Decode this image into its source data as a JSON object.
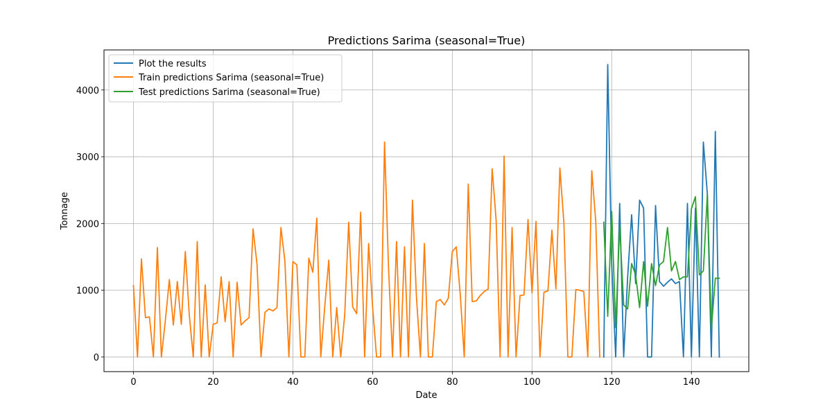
{
  "chart_data": {
    "type": "line",
    "title": "Predictions Sarima (seasonal=True)",
    "xlabel": "Date",
    "ylabel": "Tonnage",
    "xlim": [
      -7.4,
      154.4
    ],
    "ylim": [
      -219,
      4600
    ],
    "xticks": [
      0,
      20,
      40,
      60,
      80,
      100,
      120,
      140
    ],
    "yticks": [
      0,
      1000,
      2000,
      3000,
      4000
    ],
    "grid": true,
    "legend_position": "upper left",
    "series": [
      {
        "name": "Plot the results",
        "color": "#1f77b4",
        "x_start": 118,
        "values": [
          0,
          4380,
          1380,
          0,
          2300,
          0,
          1200,
          2130,
          1100,
          2350,
          2230,
          0,
          0,
          2270,
          1130,
          1060,
          1120,
          1170,
          1100,
          1130,
          0,
          2300,
          0,
          2230,
          0,
          3220,
          2440,
          0,
          3380,
          0
        ]
      },
      {
        "name": "Train predictions Sarima (seasonal=True)",
        "color": "#ff7f0e",
        "x_start": 0,
        "values": [
          1070,
          0,
          1470,
          590,
          600,
          0,
          1640,
          0,
          550,
          1160,
          480,
          1130,
          490,
          1580,
          630,
          0,
          1730,
          0,
          1080,
          0,
          490,
          510,
          1200,
          530,
          1130,
          0,
          1120,
          480,
          540,
          590,
          1920,
          1390,
          0,
          670,
          720,
          690,
          740,
          1940,
          1430,
          0,
          1430,
          1380,
          0,
          0,
          1480,
          1270,
          2080,
          0,
          760,
          1450,
          0,
          740,
          0,
          630,
          2020,
          750,
          650,
          2170,
          0,
          1700,
          750,
          0,
          0,
          3220,
          1330,
          0,
          1730,
          0,
          1650,
          0,
          2350,
          900,
          0,
          1700,
          0,
          0,
          830,
          860,
          780,
          880,
          1580,
          1650,
          930,
          0,
          2590,
          830,
          840,
          920,
          980,
          1020,
          2820,
          2050,
          0,
          3010,
          0,
          1940,
          0,
          920,
          930,
          2060,
          960,
          2030,
          0,
          970,
          990,
          1900,
          1020,
          2830,
          2010,
          0,
          0,
          1010,
          1000,
          980,
          0,
          2790,
          2030,
          0
        ]
      },
      {
        "name": "Test predictions Sarima (seasonal=True)",
        "color": "#2ca02c",
        "x_start": 118,
        "values": [
          2020,
          610,
          2180,
          440,
          1970,
          780,
          720,
          1400,
          1230,
          740,
          1430,
          760,
          1400,
          1070,
          1380,
          1430,
          1940,
          1290,
          1430,
          1160,
          1200,
          1200,
          2220,
          2400,
          1230,
          1290,
          2440,
          420,
          1180,
          1180
        ]
      }
    ]
  }
}
